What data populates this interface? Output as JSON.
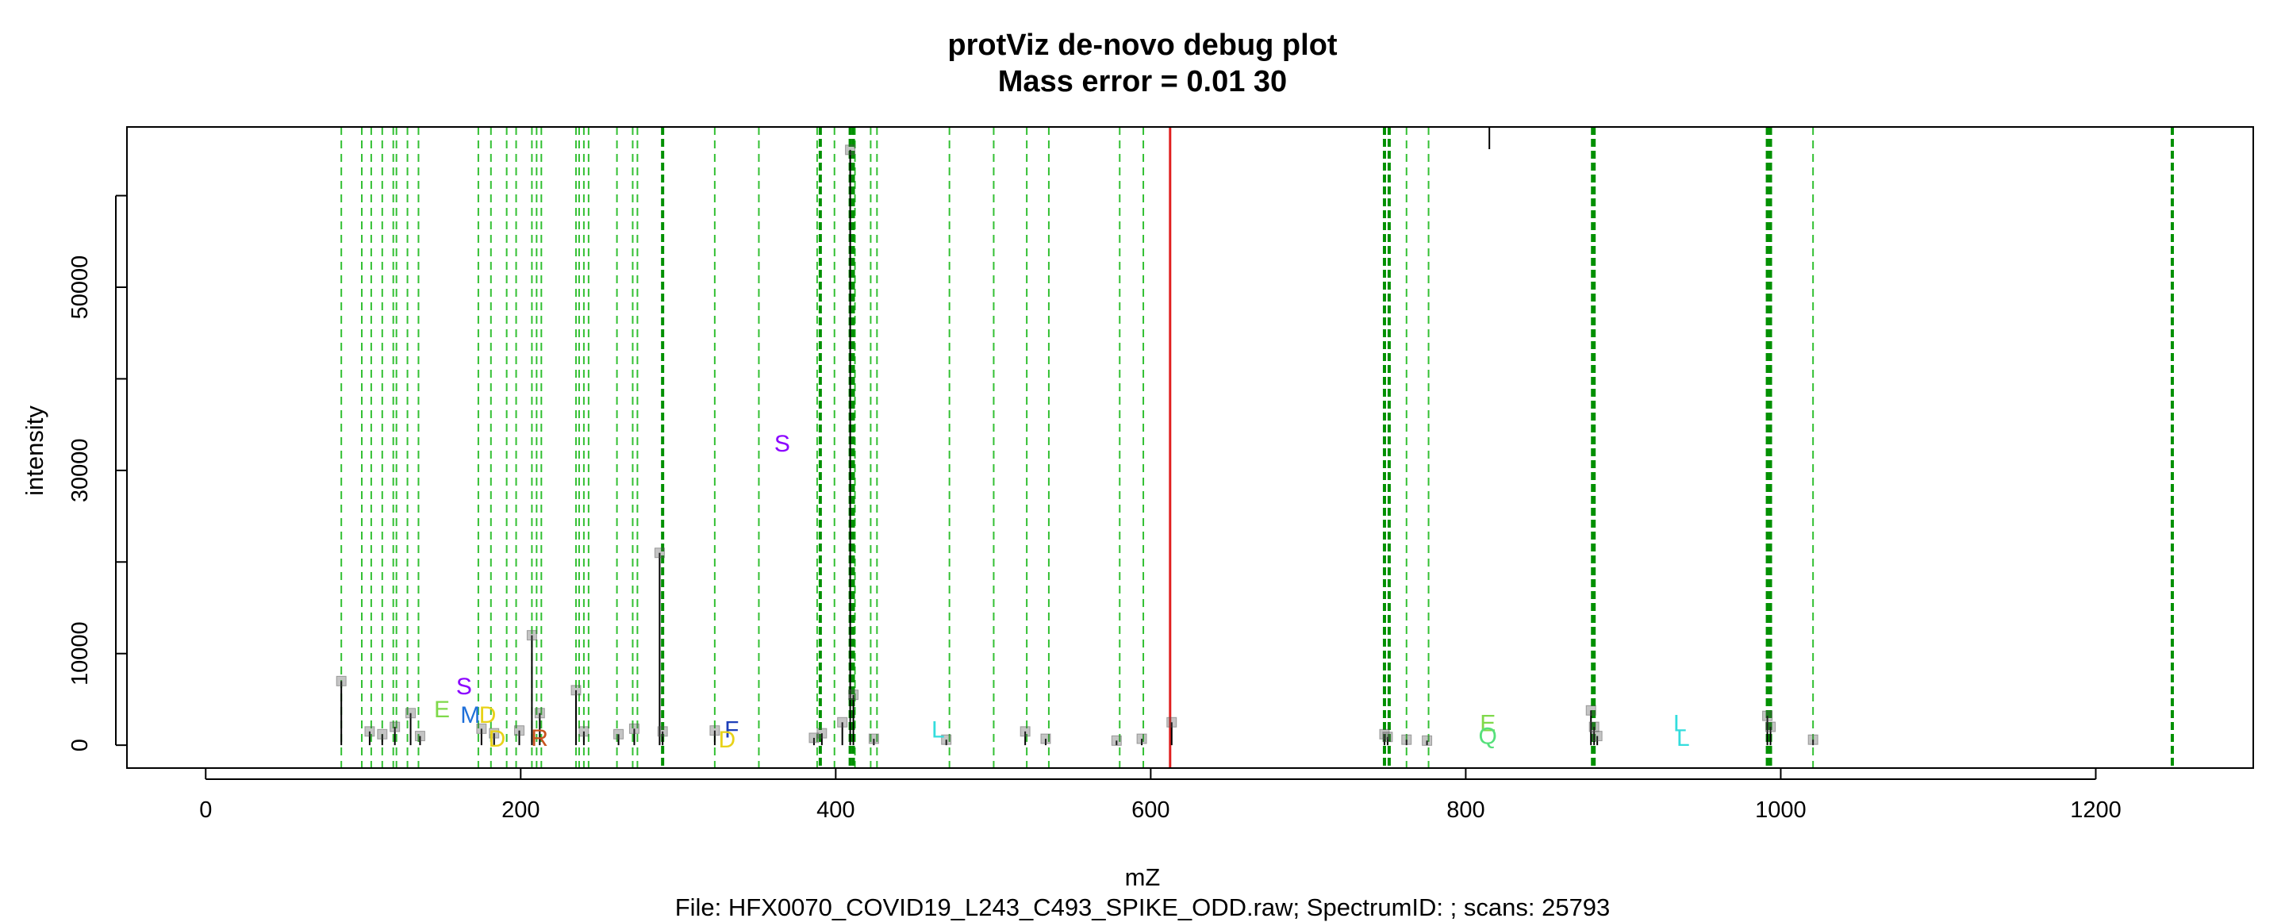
{
  "chart_data": {
    "type": "scatter",
    "title": "protViz de-novo debug plot",
    "subtitle": "Mass error = 0.01 30",
    "xlabel": "mZ",
    "ylabel": "intensity",
    "caption": "File: HFX0070_COVID19_L243_C493_SPIKE_ODD.raw; SpectrumID: ; scans: 25793",
    "xlim": [
      -50,
      1300
    ],
    "ylim": [
      -2500,
      67500
    ],
    "x_ticks": [
      "0",
      "200",
      "400",
      "600",
      "800",
      "1000",
      "1200"
    ],
    "y_ticks": [
      "0",
      "10000",
      "30000",
      "50000"
    ],
    "grid": false,
    "peaks": [
      {
        "mz": 86.1,
        "intensity": 7000
      },
      {
        "mz": 104.1,
        "intensity": 1500
      },
      {
        "mz": 112.1,
        "intensity": 1200
      },
      {
        "mz": 120.1,
        "intensity": 2000
      },
      {
        "mz": 130.1,
        "intensity": 3500
      },
      {
        "mz": 136.1,
        "intensity": 1000
      },
      {
        "mz": 175.1,
        "intensity": 1800
      },
      {
        "mz": 183.1,
        "intensity": 1300
      },
      {
        "mz": 199.1,
        "intensity": 1600
      },
      {
        "mz": 207.1,
        "intensity": 12000
      },
      {
        "mz": 212.1,
        "intensity": 3500
      },
      {
        "mz": 235.1,
        "intensity": 6000
      },
      {
        "mz": 240.1,
        "intensity": 1500
      },
      {
        "mz": 262.1,
        "intensity": 1200
      },
      {
        "mz": 272.1,
        "intensity": 1800
      },
      {
        "mz": 288.2,
        "intensity": 21000
      },
      {
        "mz": 290.1,
        "intensity": 1500
      },
      {
        "mz": 323.2,
        "intensity": 1600
      },
      {
        "mz": 386.2,
        "intensity": 800
      },
      {
        "mz": 391.2,
        "intensity": 1300
      },
      {
        "mz": 404.2,
        "intensity": 2500
      },
      {
        "mz": 409.2,
        "intensity": 65000
      },
      {
        "mz": 411.2,
        "intensity": 5500
      },
      {
        "mz": 424.2,
        "intensity": 700
      },
      {
        "mz": 470.2,
        "intensity": 600
      },
      {
        "mz": 520.3,
        "intensity": 1500
      },
      {
        "mz": 533.3,
        "intensity": 700
      },
      {
        "mz": 578.3,
        "intensity": 500
      },
      {
        "mz": 594.3,
        "intensity": 700
      },
      {
        "mz": 613.3,
        "intensity": 2500
      },
      {
        "mz": 748.4,
        "intensity": 1200
      },
      {
        "mz": 750.4,
        "intensity": 900
      },
      {
        "mz": 762.4,
        "intensity": 600
      },
      {
        "mz": 775.4,
        "intensity": 500
      },
      {
        "mz": 879.5,
        "intensity": 3800
      },
      {
        "mz": 881.5,
        "intensity": 2000
      },
      {
        "mz": 883.5,
        "intensity": 1000
      },
      {
        "mz": 991.5,
        "intensity": 3200
      },
      {
        "mz": 993.5,
        "intensity": 2000
      },
      {
        "mz": 1020.5,
        "intensity": 600
      }
    ],
    "vlines_light": [
      86.1,
      99.1,
      105.1,
      112.1,
      119.1,
      121.1,
      128.1,
      135.1,
      173.1,
      181.1,
      191.1,
      197.1,
      207.1,
      210.1,
      213.1,
      235.1,
      237.1,
      240.1,
      243.1,
      261.1,
      271.1,
      274.1,
      323.2,
      351.2,
      388.2,
      399.2,
      412.2,
      422.2,
      426.2,
      472.2,
      500.3,
      521.3,
      535.3,
      580.3,
      595.3,
      762.4,
      776.4,
      1020.5
    ],
    "vlines_dark": [
      290.1,
      390.2,
      409.2,
      411.2,
      748.4,
      751.4,
      880.5,
      881.5,
      991.5,
      993.5,
      1248.6
    ],
    "vline_red": 612.3,
    "top_marker_mz": 815.0,
    "residue_labels": [
      {
        "text": "S",
        "mz": 366,
        "intensity": 33000,
        "color": "#8b00ff"
      },
      {
        "text": "S",
        "mz": 164,
        "intensity": 6500,
        "color": "#8b00ff"
      },
      {
        "text": "E",
        "mz": 150,
        "intensity": 4000,
        "color": "#7fd94a"
      },
      {
        "text": "M",
        "mz": 168,
        "intensity": 3400,
        "color": "#1e6fd9"
      },
      {
        "text": "D",
        "mz": 179,
        "intensity": 3400,
        "color": "#e8d218"
      },
      {
        "text": "D",
        "mz": 185,
        "intensity": 800,
        "color": "#e8d218"
      },
      {
        "text": "R",
        "mz": 212,
        "intensity": 900,
        "color": "#c8531e"
      },
      {
        "text": "F",
        "mz": 334,
        "intensity": 1800,
        "color": "#1e3fb8"
      },
      {
        "text": "D",
        "mz": 331,
        "intensity": 700,
        "color": "#e8d218"
      },
      {
        "text": "L",
        "mz": 465,
        "intensity": 1800,
        "color": "#33dddd"
      },
      {
        "text": "E",
        "mz": 814,
        "intensity": 2500,
        "color": "#7fd94a"
      },
      {
        "text": "Q",
        "mz": 814,
        "intensity": 1100,
        "color": "#55e07a"
      },
      {
        "text": "L",
        "mz": 936,
        "intensity": 2500,
        "color": "#33dddd"
      },
      {
        "text": "L",
        "mz": 938,
        "intensity": 900,
        "color": "#33dddd"
      }
    ]
  }
}
